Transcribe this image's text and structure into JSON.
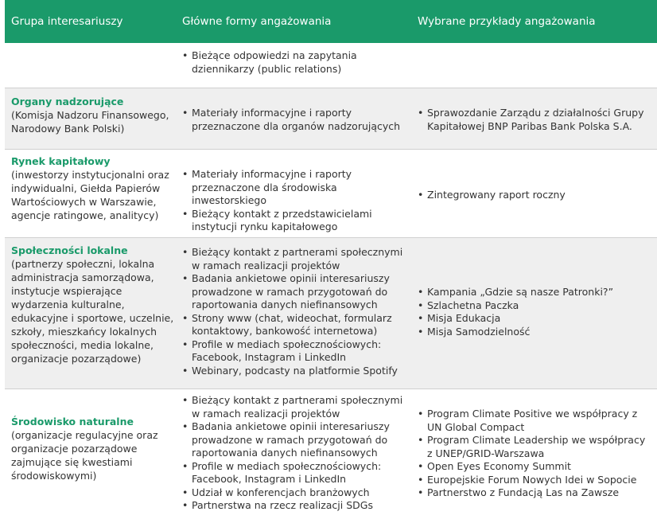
{
  "header": {
    "col1": "Grupa interesariuszy",
    "col2": "Główne formy angażowania",
    "col3": "Wybrane przykłady angażowania"
  },
  "rows": [
    {
      "group_title": "",
      "group_desc": "",
      "forms": [
        "Bieżące odpowiedzi na zapytania dziennikarzy (public relations)"
      ],
      "examples": []
    },
    {
      "group_title": "Organy nadzorujące",
      "group_desc": "(Komisja Nadzoru Finansowego, Narodowy Bank Polski)",
      "forms": [
        "Materiały informacyjne i raporty przeznaczone dla organów nadzorujących"
      ],
      "examples": [
        "Sprawozdanie Zarządu z działalności Grupy Kapitałowej BNP Paribas Bank Polska S.A."
      ]
    },
    {
      "group_title": "Rynek kapitałowy",
      "group_desc": "(inwestorzy instytucjonalni oraz indywidualni, Giełda Papierów Wartościowych w Warszawie, agencje ratingowe, analitycy)",
      "forms": [
        "Materiały informacyjne i raporty przeznaczone dla środowiska inwestorskiego",
        "Bieżący kontakt z przedstawicielami instytucji rynku kapitałowego"
      ],
      "examples": [
        "Zintegrowany raport roczny"
      ]
    },
    {
      "group_title": "Społeczności lokalne",
      "group_desc": "(partnerzy społeczni, lokalna administracja samorządowa, instytucje wspierające wydarzenia kulturalne, edukacyjne i sportowe, uczelnie, szkoły, mieszkańcy lokalnych społeczności, media lokalne, organizacje pozarządowe)",
      "forms": [
        "Bieżący kontakt z partnerami społecznymi w ramach realizacji projektów",
        "Badania ankietowe opinii interesariuszy prowadzone w ramach przygotowań do raportowania danych niefinansowych",
        "Strony www (chat, wideochat, formularz kontaktowy, bankowość internetowa)",
        "Profile w mediach społecznościowych: Facebook, Instagram i LinkedIn",
        "Webinary, podcasty na platformie Spotify"
      ],
      "examples": [
        "Kampania „Gdzie są nasze Patronki?”",
        "Szlachetna Paczka",
        "Misja Edukacja",
        "Misja Samodzielność"
      ]
    },
    {
      "group_title": "Środowisko naturalne",
      "group_desc": "(organizacje regulacyjne oraz organizacje pozarządowe zajmujące się kwestiami środowiskowymi)",
      "forms": [
        "Bieżący kontakt z partnerami społecznymi w ramach realizacji projektów",
        "Badania ankietowe opinii interesariuszy prowadzone w ramach przygotowań do raportowania danych niefinansowych",
        "Profile w mediach społecznościowych: Facebook, Instagram i LinkedIn",
        "Udział w konferencjach branżowych",
        "Partnerstwa na rzecz realizacji SDGs"
      ],
      "examples": [
        "Program Climate Positive we współpracy z UN Global Compact",
        "Program Climate Leadership we współpracy z UNEP/GRID-Warszawa",
        "Open Eyes Economy Summit",
        "Europejskie Forum Nowych Idei w Sopocie",
        "Partnerstwo z Fundacją Las na Zawsze"
      ]
    }
  ]
}
